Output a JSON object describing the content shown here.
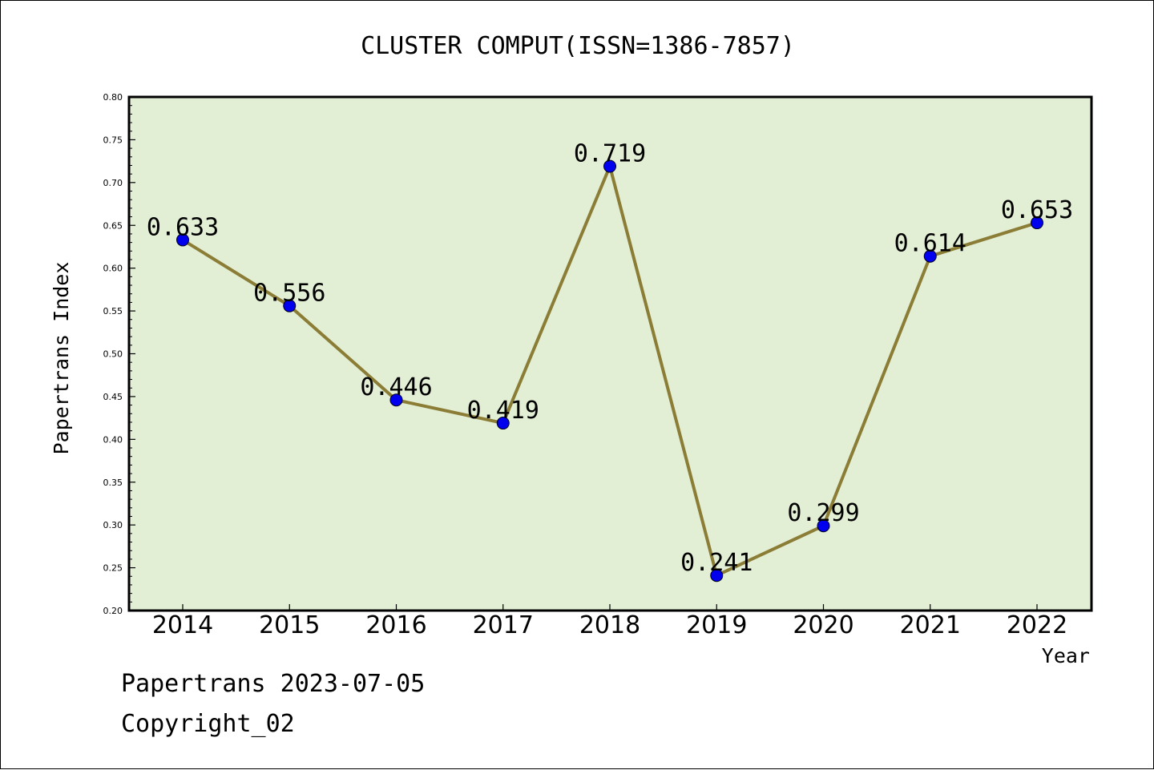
{
  "chart_data": {
    "type": "line",
    "title": "CLUSTER COMPUT(ISSN=1386-7857)",
    "xlabel": "Year",
    "ylabel": "Papertrans Index",
    "categories": [
      "2014",
      "2015",
      "2016",
      "2017",
      "2018",
      "2019",
      "2020",
      "2021",
      "2022"
    ],
    "series": [
      {
        "values": [
          0.633,
          0.556,
          0.446,
          0.419,
          0.719,
          0.241,
          0.299,
          0.614,
          0.653
        ]
      }
    ],
    "data_labels": [
      "0.633",
      "0.556",
      "0.446",
      "0.419",
      "0.719",
      "0.241",
      "0.299",
      "0.614",
      "0.653"
    ],
    "ylim": [
      0.2,
      0.8
    ],
    "yticks": [
      "0.20",
      "0.25",
      "0.30",
      "0.35",
      "0.40",
      "0.45",
      "0.50",
      "0.55",
      "0.60",
      "0.65",
      "0.70",
      "0.75",
      "0.80"
    ],
    "grid": false,
    "legend": "none",
    "colors": {
      "plot_background": "#e2efd5",
      "line": "#8b7d36",
      "marker": "#0000ee"
    }
  },
  "footer": {
    "line1": "Papertrans 2023-07-05",
    "line2": "Copyright_02"
  }
}
